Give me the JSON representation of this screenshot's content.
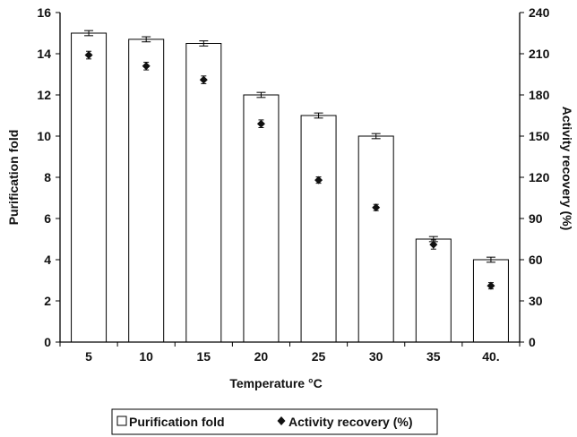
{
  "chart_data": {
    "type": "bar",
    "categories": [
      "5",
      "10",
      "15",
      "20",
      "25",
      "30",
      "35",
      "40."
    ],
    "xlabel": "Temperature °C",
    "ylabel": "Purification fold",
    "y2label": "Activity recovery (%)",
    "ylim": [
      0,
      16
    ],
    "y2lim": [
      0,
      240
    ],
    "yticks": [
      "0",
      "2",
      "4",
      "6",
      "8",
      "10",
      "12",
      "14",
      "16"
    ],
    "y2ticks": [
      "0",
      "30",
      "60",
      "90",
      "120",
      "150",
      "180",
      "210",
      "240"
    ],
    "grid": false,
    "legend_position": "bottom",
    "series": [
      {
        "name": "Purification fold",
        "kind": "bar",
        "axis": "left",
        "values": [
          15.0,
          14.7,
          14.5,
          12.0,
          11.0,
          10.0,
          5.0,
          4.0
        ],
        "error": [
          0.08,
          0.08,
          0.08,
          0.08,
          0.08,
          0.08,
          0.08,
          0.08
        ],
        "color": "#ffffff",
        "edge_color": "#000000"
      },
      {
        "name": "Activity recovery (%)",
        "kind": "scatter",
        "axis": "right",
        "marker": "diamond",
        "values": [
          209,
          201,
          191,
          159,
          118,
          98,
          71,
          41
        ],
        "error": [
          1.5,
          1.5,
          1.5,
          1.5,
          1.0,
          1.0,
          2.0,
          1.0
        ],
        "color": "#111111"
      }
    ]
  },
  "legend": {
    "bar_label": "Purification fold",
    "marker_label": "Activity recovery (%)"
  }
}
